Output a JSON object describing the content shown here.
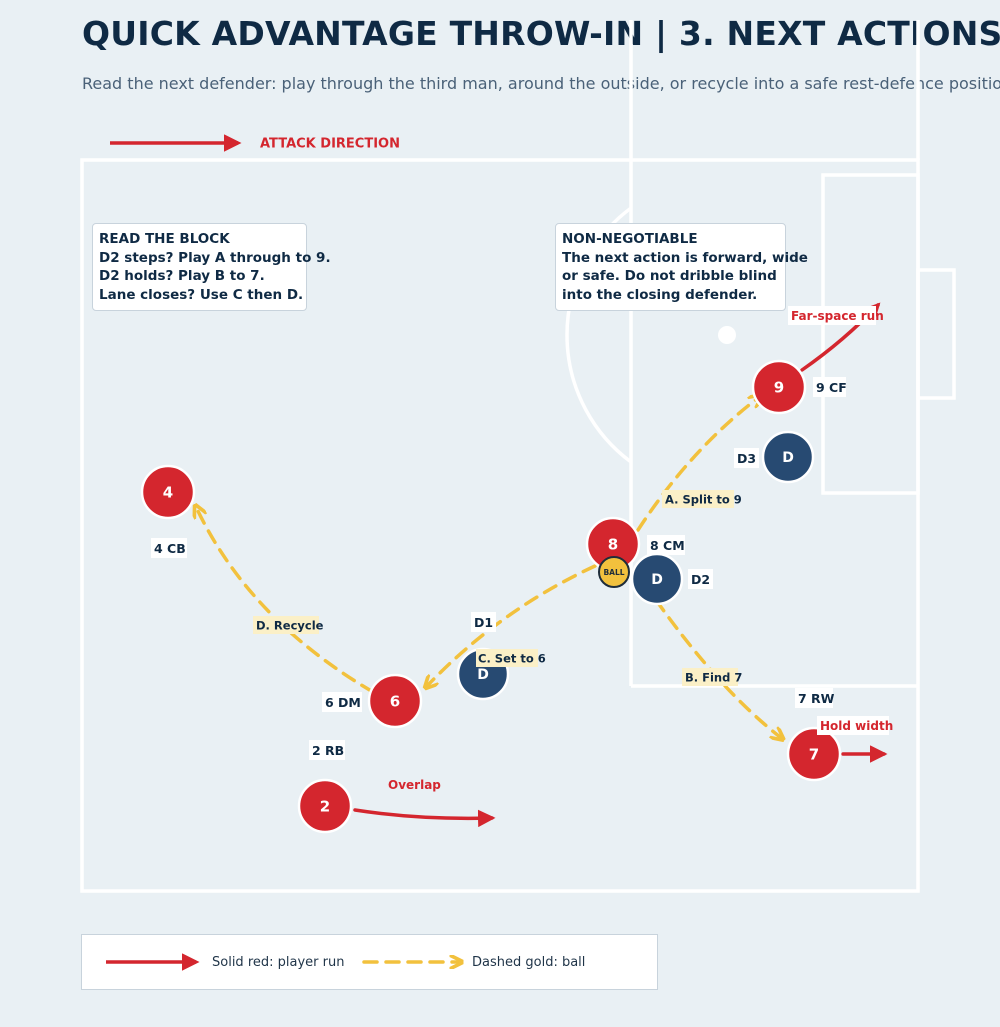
{
  "header": {
    "title": "QUICK ADVANTAGE THROW-IN | 3. NEXT ACTIONS",
    "subtitle": "Read the next defender: play through the third man, around the outside, or recycle into a safe rest-defence position."
  },
  "attack_direction": {
    "label": "ATTACK DIRECTION"
  },
  "notes": {
    "read_block": {
      "heading": "READ THE BLOCK",
      "lines": [
        "D2 steps? Play A through to 9.",
        "D2 holds? Play B to 7.",
        "Lane closes? Use C then D."
      ]
    },
    "non_negotiable": {
      "heading": "NON-NEGOTIABLE",
      "lines": [
        "The next action is forward, wide",
        "or safe. Do not dribble blind",
        "into the closing defender."
      ]
    }
  },
  "players": {
    "p9": {
      "number": "9",
      "label": "9 CF"
    },
    "p8": {
      "number": "8",
      "label": "8 CM"
    },
    "p4": {
      "number": "4",
      "label": "4 CB"
    },
    "p6": {
      "number": "6",
      "label": "6 DM"
    },
    "p2": {
      "number": "2",
      "label": "2 RB"
    },
    "p7": {
      "number": "7",
      "label": "7 RW"
    }
  },
  "defenders": {
    "d1": {
      "mark": "D",
      "label": "D1"
    },
    "d2": {
      "mark": "D",
      "label": "D2"
    },
    "d3": {
      "mark": "D",
      "label": "D3"
    }
  },
  "ball": {
    "label": "BALL"
  },
  "passes": {
    "a": "A. Split to 9",
    "b": "B. Find 7",
    "c": "C. Set to 6",
    "d": "D. Recycle"
  },
  "runs": {
    "far_space": "Far-space run",
    "hold_width": "Hold width",
    "overlap": "Overlap"
  },
  "legend": {
    "solid": "Solid red: player run",
    "dashed": "Dashed gold: ball"
  },
  "colors": {
    "attacker": "#d4262e",
    "defender": "#274a72",
    "ball_line": "#f2c13d",
    "line": "#ffffff",
    "background": "#e9f0f4"
  }
}
